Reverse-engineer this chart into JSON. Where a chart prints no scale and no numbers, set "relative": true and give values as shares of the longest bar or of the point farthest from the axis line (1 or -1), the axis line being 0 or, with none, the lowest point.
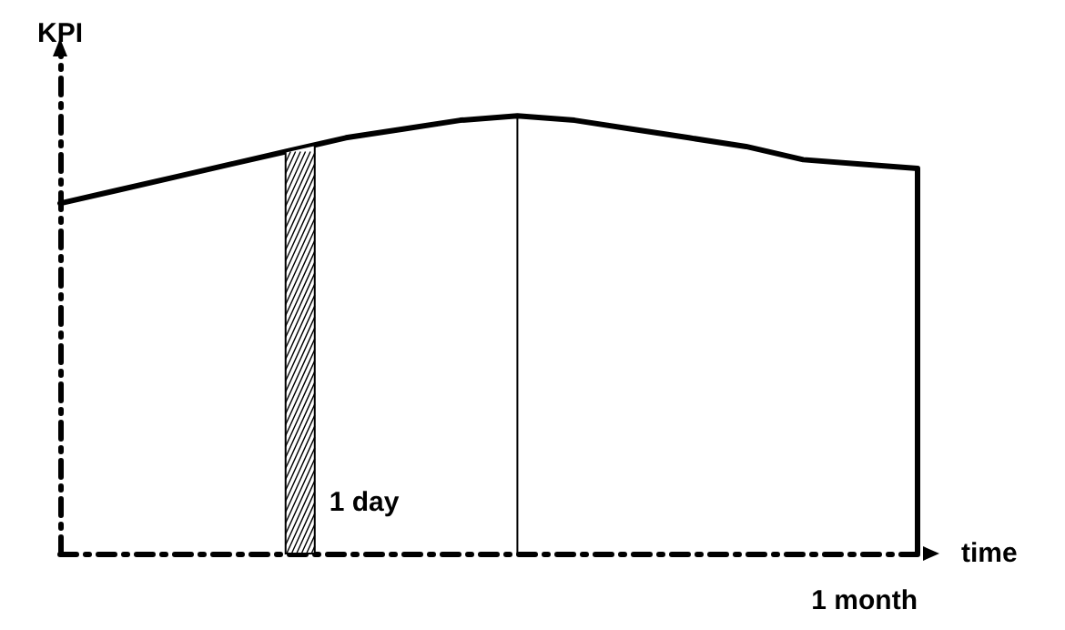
{
  "chart_data": {
    "type": "line",
    "xlabel": "time",
    "ylabel": "KPI",
    "relative": true,
    "color": "#000000",
    "marker": "none",
    "line_style": "solid",
    "grid": false,
    "categories": [
      null,
      null,
      null,
      null,
      null,
      null,
      null,
      null,
      null,
      null,
      null,
      null,
      null,
      null,
      null,
      null
    ],
    "values": [
      0.8,
      0.83,
      0.86,
      0.89,
      0.92,
      0.95,
      0.97,
      0.99,
      1,
      0.99,
      0.97,
      0.95,
      0.93,
      0.9,
      0.89,
      0.88
    ],
    "annotations": [
      "1 day",
      "1 month"
    ]
  }
}
